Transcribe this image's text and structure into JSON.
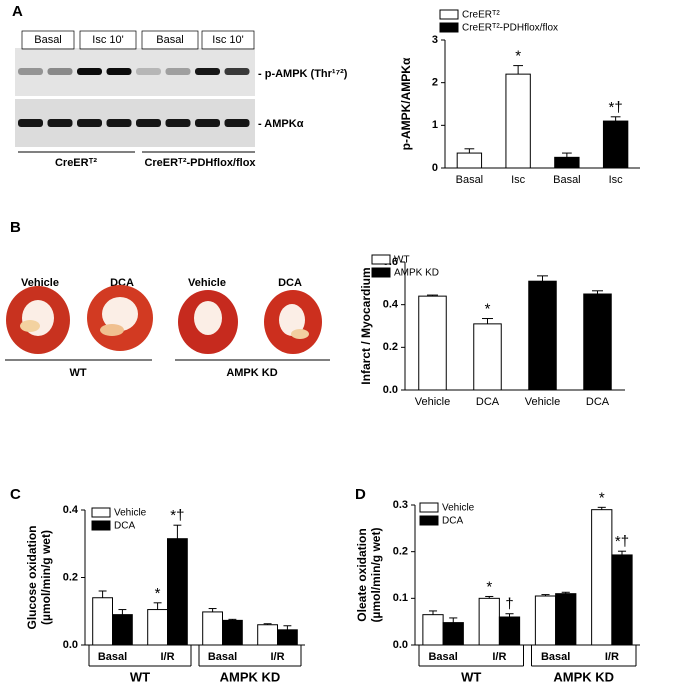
{
  "figure": {
    "panels": [
      "A",
      "B",
      "C",
      "D"
    ],
    "blot": {
      "lanes": [
        "Basal",
        "Isc 10'",
        "Basal",
        "Isc 10'"
      ],
      "bands": [
        "- p-AMPK (Thr¹⁷²)",
        "- AMPKα"
      ],
      "groups": [
        "CreERᵀ²",
        "CreERᵀ²-PDHflox/flox"
      ]
    },
    "hearts": {
      "treatments": [
        "Vehicle",
        "DCA",
        "Vehicle",
        "DCA"
      ],
      "groups": [
        "WT",
        "AMPK KD"
      ]
    }
  },
  "chart_data": [
    {
      "type": "bar",
      "ylabel": "p-AMPK/AMPKα",
      "categories": [
        "Basal",
        "Isc",
        "Basal",
        "Isc"
      ],
      "ylim": [
        0,
        3
      ],
      "yticks": [
        0,
        1,
        2,
        3
      ],
      "series": [
        {
          "name": "CreERᵀ²",
          "color": "#ffffff",
          "values": [
            0.35,
            2.2,
            null,
            null
          ],
          "errors": [
            0.1,
            0.2,
            null,
            null
          ],
          "annotations": [
            null,
            "*",
            null,
            null
          ]
        },
        {
          "name": "CreERᵀ²-PDHflox/flox",
          "color": "#000000",
          "values": [
            null,
            null,
            0.25,
            1.1
          ],
          "errors": [
            null,
            null,
            0.1,
            0.1
          ],
          "annotations": [
            null,
            null,
            null,
            "*†"
          ]
        }
      ]
    },
    {
      "type": "bar",
      "ylabel": "Infarct / Myocardium",
      "categories": [
        "Vehicle",
        "DCA",
        "Vehicle",
        "DCA"
      ],
      "ylim": [
        0,
        0.6
      ],
      "yticks": [
        {
          "value": 0,
          "label": "0.0"
        },
        0.2,
        0.4,
        0.6
      ],
      "series": [
        {
          "name": "WT",
          "color": "#ffffff",
          "values": [
            0.44,
            0.31,
            null,
            null
          ],
          "errors": [
            0.005,
            0.025,
            null,
            null
          ],
          "annotations": [
            null,
            "*",
            null,
            null
          ]
        },
        {
          "name": "AMPK KD",
          "color": "#000000",
          "values": [
            null,
            null,
            0.51,
            0.45
          ],
          "errors": [
            null,
            null,
            0.025,
            0.015
          ],
          "annotations": [
            null,
            null,
            null,
            null
          ]
        }
      ]
    },
    {
      "type": "bar",
      "ylabel": [
        "Glucose oxidation",
        "(µmol/min/g wet)"
      ],
      "categories": [
        "Basal",
        "I/R",
        "Basal",
        "I/R"
      ],
      "groups": [
        "WT",
        "AMPK KD"
      ],
      "ylim": [
        0,
        0.4
      ],
      "yticks": [
        {
          "value": 0,
          "label": "0.0"
        },
        0.2,
        0.4
      ],
      "series": [
        {
          "name": "Vehicle",
          "color": "#ffffff",
          "values": [
            0.14,
            0.105,
            0.098,
            0.06
          ],
          "errors": [
            0.02,
            0.02,
            0.01,
            0.003
          ],
          "annotations": [
            null,
            "*",
            null,
            null
          ]
        },
        {
          "name": "DCA",
          "color": "#000000",
          "values": [
            0.09,
            0.315,
            0.073,
            0.045
          ],
          "errors": [
            0.015,
            0.04,
            0.003,
            0.012
          ],
          "annotations": [
            null,
            "*†",
            null,
            null
          ]
        }
      ]
    },
    {
      "type": "bar",
      "ylabel": [
        "Oleate oxidation",
        "(µmol/min/g wet)"
      ],
      "categories": [
        "Basal",
        "I/R",
        "Basal",
        "I/R"
      ],
      "groups": [
        "WT",
        "AMPK KD"
      ],
      "ylim": [
        0,
        0.3
      ],
      "yticks": [
        {
          "value": 0,
          "label": "0.0"
        },
        0.1,
        0.2,
        0.3
      ],
      "series": [
        {
          "name": "Vehicle",
          "color": "#ffffff",
          "values": [
            0.065,
            0.1,
            0.105,
            0.29
          ],
          "errors": [
            0.008,
            0.004,
            0.003,
            0.005
          ],
          "annotations": [
            null,
            "*",
            null,
            "*"
          ]
        },
        {
          "name": "DCA",
          "color": "#000000",
          "values": [
            0.048,
            0.06,
            0.11,
            0.193
          ],
          "errors": [
            0.01,
            0.007,
            0.003,
            0.008
          ],
          "annotations": [
            null,
            "†",
            null,
            "*†"
          ]
        }
      ]
    }
  ]
}
